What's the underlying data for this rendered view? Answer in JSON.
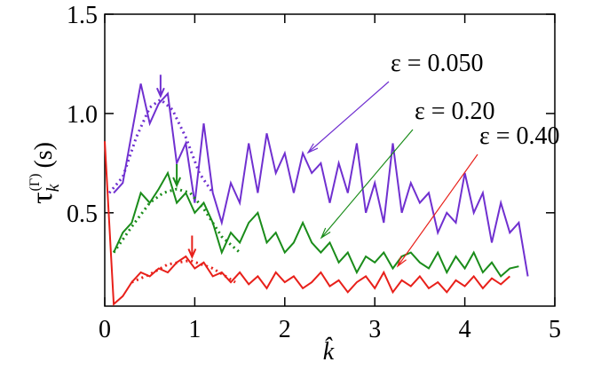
{
  "chart_data": {
    "type": "line",
    "ylabel": {
      "symbol": "τ",
      "sub": "k",
      "sup": "(Γ)",
      "unit": "(s)"
    },
    "xlabel": "k̂",
    "xlim": [
      0,
      5
    ],
    "xticks": [
      0,
      1,
      2,
      3,
      4,
      5
    ],
    "ylim": [
      0.03,
      1.5
    ],
    "yticks": [
      0.5,
      {
        "value": 1,
        "label": "1.0"
      },
      1.5
    ],
    "x": [
      0.0,
      0.1,
      0.2,
      0.3,
      0.4,
      0.5,
      0.6,
      0.7,
      0.8,
      0.9,
      1.0,
      1.1,
      1.2,
      1.3,
      1.4,
      1.5,
      1.6,
      1.7,
      1.8,
      1.9,
      2.0,
      2.1,
      2.2,
      2.3,
      2.4,
      2.5,
      2.6,
      2.7,
      2.8,
      2.9,
      3.0,
      3.1,
      3.2,
      3.3,
      3.4,
      3.5,
      3.6,
      3.7,
      3.8,
      3.9,
      4.0,
      4.1,
      4.2,
      4.3,
      4.4,
      4.5,
      4.6,
      4.7
    ],
    "series": [
      {
        "name": "ε = 0.050",
        "color": "#7030d0",
        "values": [
          null,
          0.6,
          0.65,
          0.9,
          1.15,
          0.95,
          1.05,
          1.1,
          0.75,
          0.85,
          0.55,
          0.95,
          0.6,
          0.45,
          0.65,
          0.55,
          0.85,
          0.6,
          0.9,
          0.7,
          0.8,
          0.6,
          0.8,
          0.7,
          0.75,
          0.55,
          0.75,
          0.6,
          0.85,
          0.5,
          0.65,
          0.45,
          0.85,
          0.5,
          0.65,
          0.55,
          0.6,
          0.4,
          0.5,
          0.45,
          0.7,
          0.5,
          0.6,
          0.35,
          0.55,
          0.4,
          0.45,
          0.18
        ],
        "fit": {
          "x": [
            0.05,
            0.2,
            0.35,
            0.5,
            0.62,
            0.75,
            0.9,
            1.05,
            1.2
          ],
          "values": [
            0.6,
            0.68,
            0.88,
            1.03,
            1.07,
            1.02,
            0.88,
            0.7,
            0.6
          ],
          "peak": 0.62
        }
      },
      {
        "name": "ε = 0.20",
        "color": "#1a8c1a",
        "values": [
          null,
          0.3,
          0.4,
          0.45,
          0.6,
          0.55,
          0.62,
          0.7,
          0.55,
          0.6,
          0.5,
          0.55,
          0.45,
          0.3,
          0.4,
          0.35,
          0.45,
          0.5,
          0.35,
          0.4,
          0.3,
          0.35,
          0.45,
          0.35,
          0.3,
          0.35,
          0.25,
          0.3,
          0.2,
          0.28,
          0.25,
          0.3,
          0.22,
          0.28,
          0.3,
          0.25,
          0.22,
          0.3,
          0.2,
          0.28,
          0.22,
          0.3,
          0.2,
          0.25,
          0.18,
          0.22,
          0.23,
          null
        ],
        "fit": {
          "x": [
            0.1,
            0.3,
            0.5,
            0.65,
            0.8,
            0.95,
            1.1,
            1.3,
            1.5
          ],
          "values": [
            0.3,
            0.43,
            0.55,
            0.6,
            0.62,
            0.6,
            0.52,
            0.38,
            0.3
          ],
          "peak": 0.8
        }
      },
      {
        "name": "ε = 0.40",
        "color": "#e8201a",
        "values": [
          0.86,
          0.04,
          0.08,
          0.15,
          0.2,
          0.18,
          0.22,
          0.2,
          0.25,
          0.28,
          0.22,
          0.25,
          0.18,
          0.2,
          0.15,
          0.2,
          0.14,
          0.18,
          0.12,
          0.2,
          0.15,
          0.18,
          0.12,
          0.15,
          0.2,
          0.13,
          0.16,
          0.1,
          0.15,
          0.18,
          0.12,
          0.2,
          0.1,
          0.16,
          0.13,
          0.18,
          0.12,
          0.15,
          0.1,
          0.16,
          0.13,
          0.18,
          0.12,
          0.17,
          0.14,
          0.18,
          null,
          null
        ],
        "fit": {
          "x": [
            0.3,
            0.5,
            0.7,
            0.95,
            1.2,
            1.45
          ],
          "values": [
            0.15,
            0.19,
            0.24,
            0.26,
            0.22,
            0.15
          ],
          "peak": 0.97
        }
      }
    ]
  }
}
